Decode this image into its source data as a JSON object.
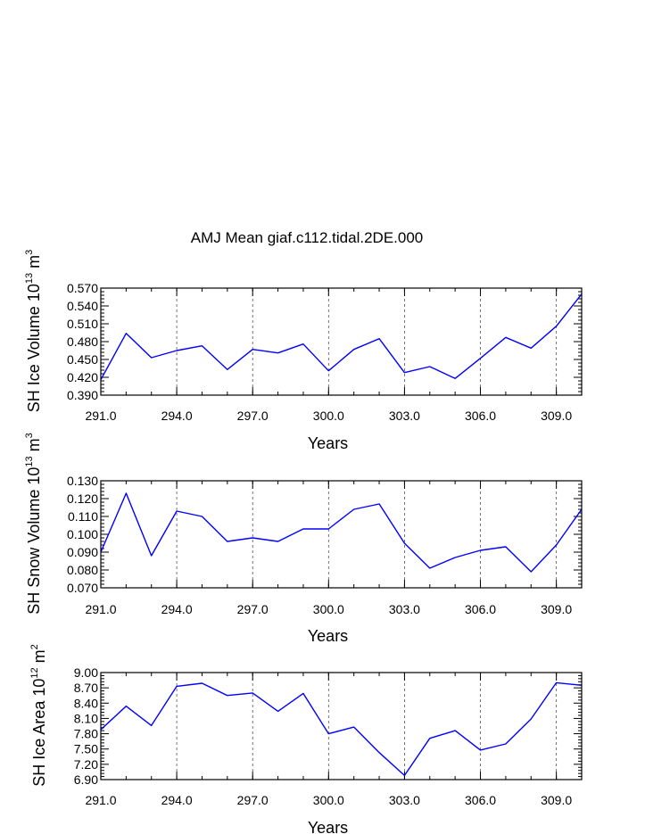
{
  "title": "AMJ Mean giaf.c112.tidal.2DE.000",
  "colors": {
    "line": "#0000ff",
    "axis": "#000000",
    "grid": "#555555"
  },
  "chart_data": [
    {
      "type": "line",
      "xlabel": "Years",
      "ylabel": {
        "prefix": "SH Ice Volume 10",
        "exp": "13",
        "unit": " m",
        "unit_exp": "3"
      },
      "xlim": [
        291.0,
        310.0
      ],
      "ylim": [
        0.39,
        0.57
      ],
      "xticks": [
        "291.0",
        "294.0",
        "297.0",
        "300.0",
        "303.0",
        "306.0",
        "309.0"
      ],
      "yticks": [
        "0.390",
        "0.420",
        "0.450",
        "0.480",
        "0.510",
        "0.540",
        "0.570"
      ],
      "x": [
        291,
        292,
        293,
        294,
        295,
        296,
        297,
        298,
        299,
        300,
        301,
        302,
        303,
        304,
        305,
        306,
        307,
        308,
        309,
        310
      ],
      "values": [
        0.416,
        0.494,
        0.453,
        0.465,
        0.473,
        0.433,
        0.467,
        0.461,
        0.476,
        0.431,
        0.467,
        0.485,
        0.428,
        0.438,
        0.418,
        0.452,
        0.487,
        0.469,
        0.506,
        0.56
      ]
    },
    {
      "type": "line",
      "xlabel": "Years",
      "ylabel": {
        "prefix": "SH Snow Volume 10",
        "exp": "13",
        "unit": " m",
        "unit_exp": "3"
      },
      "xlim": [
        291.0,
        310.0
      ],
      "ylim": [
        0.07,
        0.13
      ],
      "xticks": [
        "291.0",
        "294.0",
        "297.0",
        "300.0",
        "303.0",
        "306.0",
        "309.0"
      ],
      "yticks": [
        "0.070",
        "0.080",
        "0.090",
        "0.100",
        "0.110",
        "0.120",
        "0.130"
      ],
      "x": [
        291,
        292,
        293,
        294,
        295,
        296,
        297,
        298,
        299,
        300,
        301,
        302,
        303,
        304,
        305,
        306,
        307,
        308,
        309,
        310
      ],
      "values": [
        0.09,
        0.123,
        0.088,
        0.113,
        0.11,
        0.096,
        0.098,
        0.096,
        0.103,
        0.103,
        0.114,
        0.117,
        0.095,
        0.081,
        0.087,
        0.091,
        0.093,
        0.079,
        0.094,
        0.114
      ]
    },
    {
      "type": "line",
      "xlabel": "Years",
      "ylabel": {
        "prefix": "SH Ice Area 10",
        "exp": "12",
        "unit": " m",
        "unit_exp": "2"
      },
      "xlim": [
        291.0,
        310.0
      ],
      "ylim": [
        6.9,
        9.0
      ],
      "xticks": [
        "291.0",
        "294.0",
        "297.0",
        "300.0",
        "303.0",
        "306.0",
        "309.0"
      ],
      "yticks": [
        "6.90",
        "7.20",
        "7.50",
        "7.80",
        "8.10",
        "8.40",
        "8.70",
        "9.00"
      ],
      "x": [
        291,
        292,
        293,
        294,
        295,
        296,
        297,
        298,
        299,
        300,
        301,
        302,
        303,
        304,
        305,
        306,
        307,
        308,
        309,
        310
      ],
      "values": [
        7.88,
        8.34,
        7.96,
        8.73,
        8.79,
        8.55,
        8.6,
        8.24,
        8.59,
        7.8,
        7.93,
        7.43,
        6.98,
        7.71,
        7.86,
        7.48,
        7.6,
        8.09,
        8.8,
        8.75
      ]
    }
  ]
}
